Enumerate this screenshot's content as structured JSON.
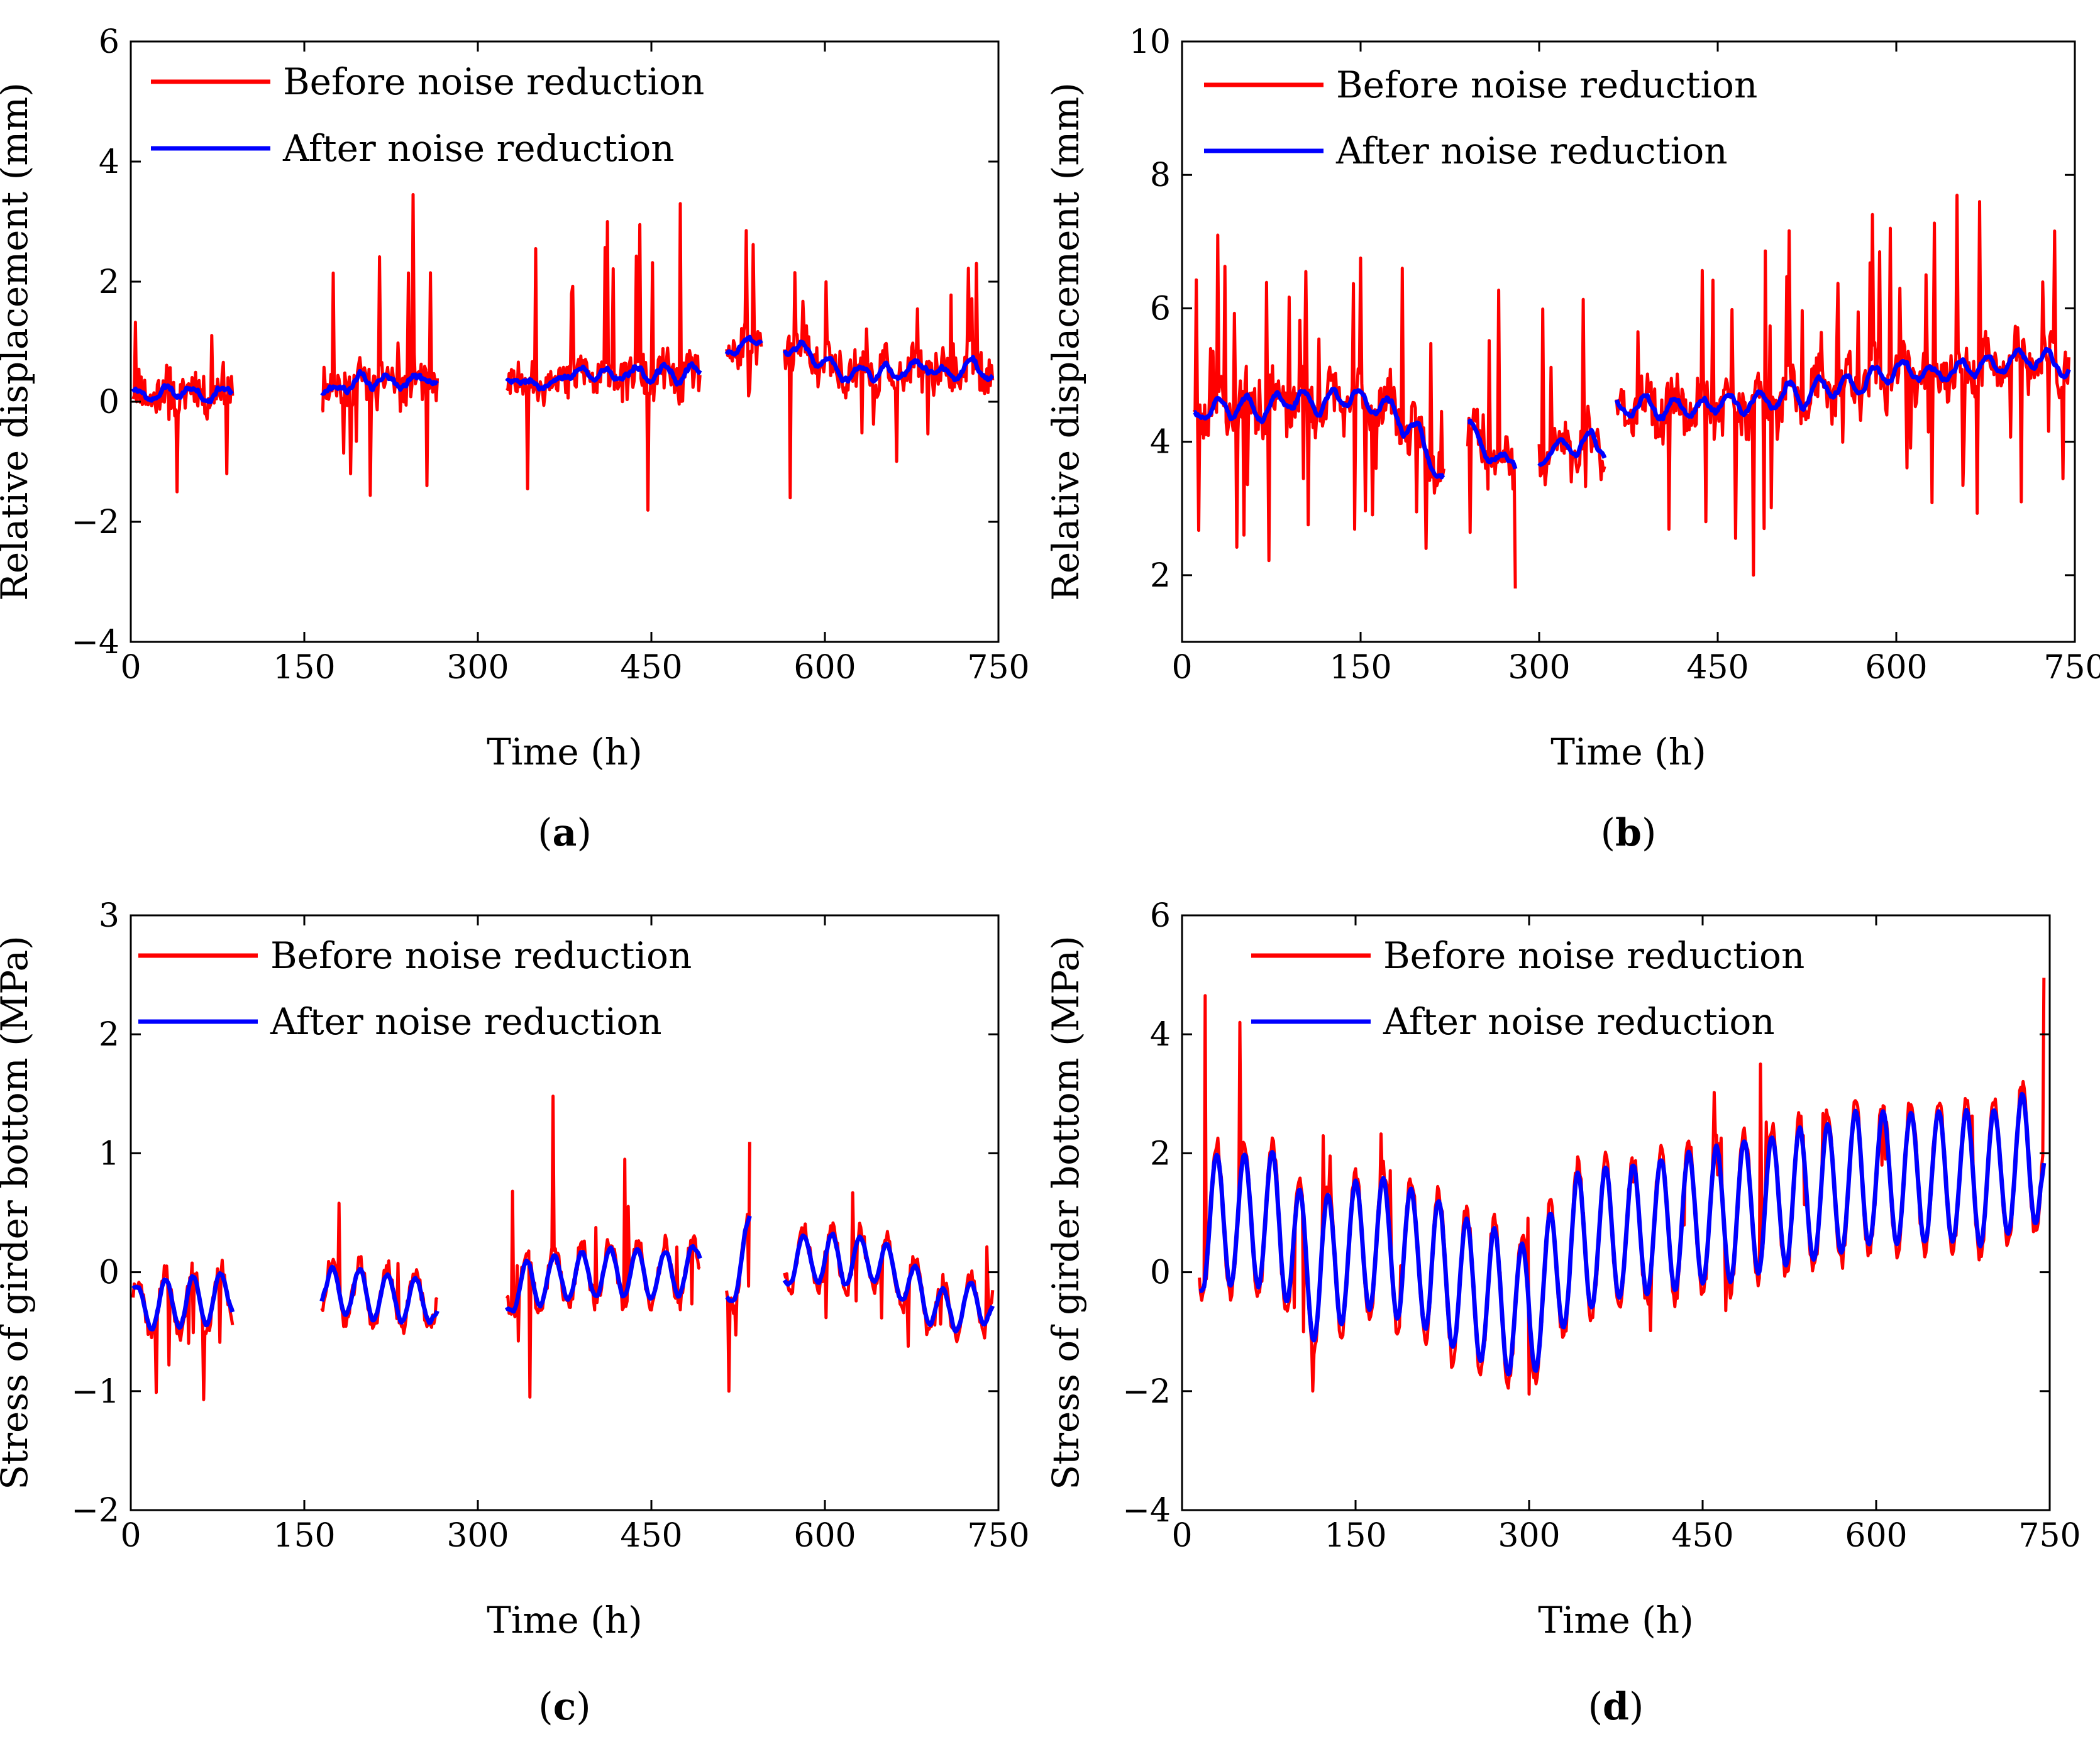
{
  "legend": {
    "before": "Before noise reduction",
    "after": "After noise reduction"
  },
  "colors": {
    "before": "#ff0000",
    "after": "#0000ff",
    "axis": "#000000"
  },
  "chart_data": [
    {
      "id": "a",
      "panel_label": "a",
      "type": "line",
      "xlabel": "Time (h)",
      "ylabel": "Relative displacement (mm)",
      "xlim": [
        0,
        750
      ],
      "ylim": [
        -4,
        6
      ],
      "xticks": [
        0,
        150,
        300,
        450,
        600,
        750
      ],
      "yticks": [
        -4,
        -2,
        0,
        2,
        4,
        6
      ],
      "ytick_labels": [
        "−4",
        "−2",
        "0",
        "2",
        "4",
        "6"
      ],
      "gen": {
        "segments": [
          [
            2,
            88
          ],
          [
            165,
            265
          ],
          [
            325,
            492
          ],
          [
            515,
            545
          ],
          [
            565,
            745
          ]
        ],
        "trend": [
          [
            0,
            0.15
          ],
          [
            100,
            0.2
          ],
          [
            200,
            0.3
          ],
          [
            320,
            0.35
          ],
          [
            420,
            0.45
          ],
          [
            490,
            0.4
          ],
          [
            515,
            0.9
          ],
          [
            545,
            1.0
          ],
          [
            565,
            0.95
          ],
          [
            620,
            0.5
          ],
          [
            700,
            0.5
          ],
          [
            745,
            0.6
          ]
        ],
        "wave": 0.15,
        "noise": 0.35,
        "spike": 1.3,
        "spike_prob": 0.08,
        "seed": 11,
        "smooth": 5
      },
      "series": [
        {
          "name": "Before noise reduction",
          "points": [
            [
              244,
              3.45
            ],
            [
              475,
              3.3
            ],
            [
              350,
              2.55
            ],
            [
              412,
              3.0
            ],
            [
              440,
              2.95
            ],
            [
              532,
              2.85
            ],
            [
              570,
              -1.6
            ],
            [
              343,
              -1.45
            ],
            [
              40,
              -1.5
            ],
            [
              190,
              -1.2
            ],
            [
              83,
              -1.2
            ]
          ]
        },
        {
          "name": "After noise reduction",
          "points": []
        }
      ]
    },
    {
      "id": "b",
      "panel_label": "b",
      "type": "line",
      "xlabel": "Time (h)",
      "ylabel": "Relative displacement (mm)",
      "xlim": [
        0,
        750
      ],
      "ylim": [
        1,
        10
      ],
      "xticks": [
        0,
        150,
        300,
        450,
        600,
        750
      ],
      "yticks": [
        2,
        4,
        6,
        8,
        10
      ],
      "ytick_labels": [
        "2",
        "4",
        "6",
        "8",
        "10"
      ],
      "gen": {
        "segments": [
          [
            10,
            220
          ],
          [
            240,
            280
          ],
          [
            300,
            355
          ],
          [
            365,
            745
          ]
        ],
        "trend": [
          [
            10,
            4.5
          ],
          [
            100,
            4.6
          ],
          [
            170,
            4.6
          ],
          [
            220,
            3.6
          ],
          [
            240,
            4.0
          ],
          [
            280,
            3.7
          ],
          [
            300,
            3.8
          ],
          [
            355,
            4.0
          ],
          [
            365,
            4.5
          ],
          [
            500,
            4.6
          ],
          [
            600,
            5.0
          ],
          [
            700,
            5.2
          ],
          [
            745,
            5.2
          ]
        ],
        "wave": 0.25,
        "noise": 0.35,
        "spike": 1.6,
        "spike_prob": 0.08,
        "seed": 23,
        "smooth": 6
      },
      "series": [
        {
          "name": "Before noise reduction",
          "points": [
            [
              670,
              7.6
            ],
            [
              595,
              7.2
            ],
            [
              185,
              6.6
            ],
            [
              52,
              2.6
            ],
            [
              280,
              1.8
            ],
            [
              205,
              2.4
            ],
            [
              480,
              2.0
            ],
            [
              705,
              3.1
            ]
          ]
        },
        {
          "name": "After noise reduction",
          "points": []
        }
      ]
    },
    {
      "id": "c",
      "panel_label": "c",
      "type": "line",
      "xlabel": "Time (h)",
      "ylabel": "Stress of girder bottom (MPa)",
      "xlim": [
        0,
        750
      ],
      "ylim": [
        -2,
        3
      ],
      "xticks": [
        0,
        150,
        300,
        450,
        600,
        750
      ],
      "yticks": [
        -2,
        -1,
        0,
        1,
        2,
        3
      ],
      "ytick_labels": [
        "−2",
        "−1",
        "0",
        "1",
        "2",
        "3"
      ],
      "gen": {
        "segments": [
          [
            2,
            88
          ],
          [
            165,
            265
          ],
          [
            325,
            492
          ],
          [
            515,
            535
          ],
          [
            565,
            745
          ]
        ],
        "trend": [
          [
            0,
            -0.3
          ],
          [
            88,
            -0.2
          ],
          [
            165,
            -0.15
          ],
          [
            265,
            -0.25
          ],
          [
            325,
            -0.15
          ],
          [
            400,
            0.0
          ],
          [
            492,
            0.0
          ],
          [
            515,
            -0.2
          ],
          [
            535,
            0.3
          ],
          [
            565,
            0.1
          ],
          [
            650,
            0.1
          ],
          [
            700,
            -0.35
          ],
          [
            745,
            -0.25
          ]
        ],
        "wave": 0.25,
        "noise": 0.08,
        "spike": 0.5,
        "spike_prob": 0.04,
        "seed": 37,
        "smooth": 4
      },
      "series": [
        {
          "name": "Before noise reduction",
          "points": [
            [
              365,
              1.48
            ],
            [
              330,
              0.68
            ],
            [
              180,
              0.58
            ],
            [
              427,
              0.95
            ],
            [
              345,
              -1.05
            ],
            [
              517,
              -1.0
            ],
            [
              33,
              -0.78
            ]
          ]
        },
        {
          "name": "After noise reduction",
          "points": []
        }
      ]
    },
    {
      "id": "d",
      "panel_label": "d",
      "type": "line",
      "xlabel": "Time (h)",
      "ylabel": "Stress of girder bottom (MPa)",
      "xlim": [
        0,
        750
      ],
      "ylim": [
        -4,
        6
      ],
      "xticks": [
        0,
        150,
        300,
        450,
        600,
        750
      ],
      "yticks": [
        -4,
        -2,
        0,
        2,
        4,
        6
      ],
      "ytick_labels": [
        "−4",
        "−2",
        "0",
        "2",
        "4",
        "6"
      ],
      "gen": {
        "segments": [
          [
            15,
            745
          ]
        ],
        "trend": [
          [
            15,
            0.9
          ],
          [
            80,
            0.9
          ],
          [
            110,
            0.0
          ],
          [
            160,
            0.5
          ],
          [
            200,
            0.3
          ],
          [
            240,
            -0.2
          ],
          [
            300,
            -0.7
          ],
          [
            340,
            0.5
          ],
          [
            450,
            0.9
          ],
          [
            600,
            1.6
          ],
          [
            700,
            1.6
          ],
          [
            745,
            2.0
          ]
        ],
        "wave": 1.3,
        "noise": 0.15,
        "spike": 1.1,
        "spike_prob": 0.04,
        "seed": 53,
        "smooth": 3
      },
      "series": [
        {
          "name": "Before noise reduction",
          "points": [
            [
              20,
              4.65
            ],
            [
              50,
              4.2
            ],
            [
              745,
              4.95
            ],
            [
              500,
              3.5
            ],
            [
              300,
              -2.05
            ],
            [
              233,
              -1.6
            ],
            [
              105,
              -1.0
            ]
          ]
        },
        {
          "name": "After noise reduction",
          "points": []
        }
      ]
    }
  ]
}
